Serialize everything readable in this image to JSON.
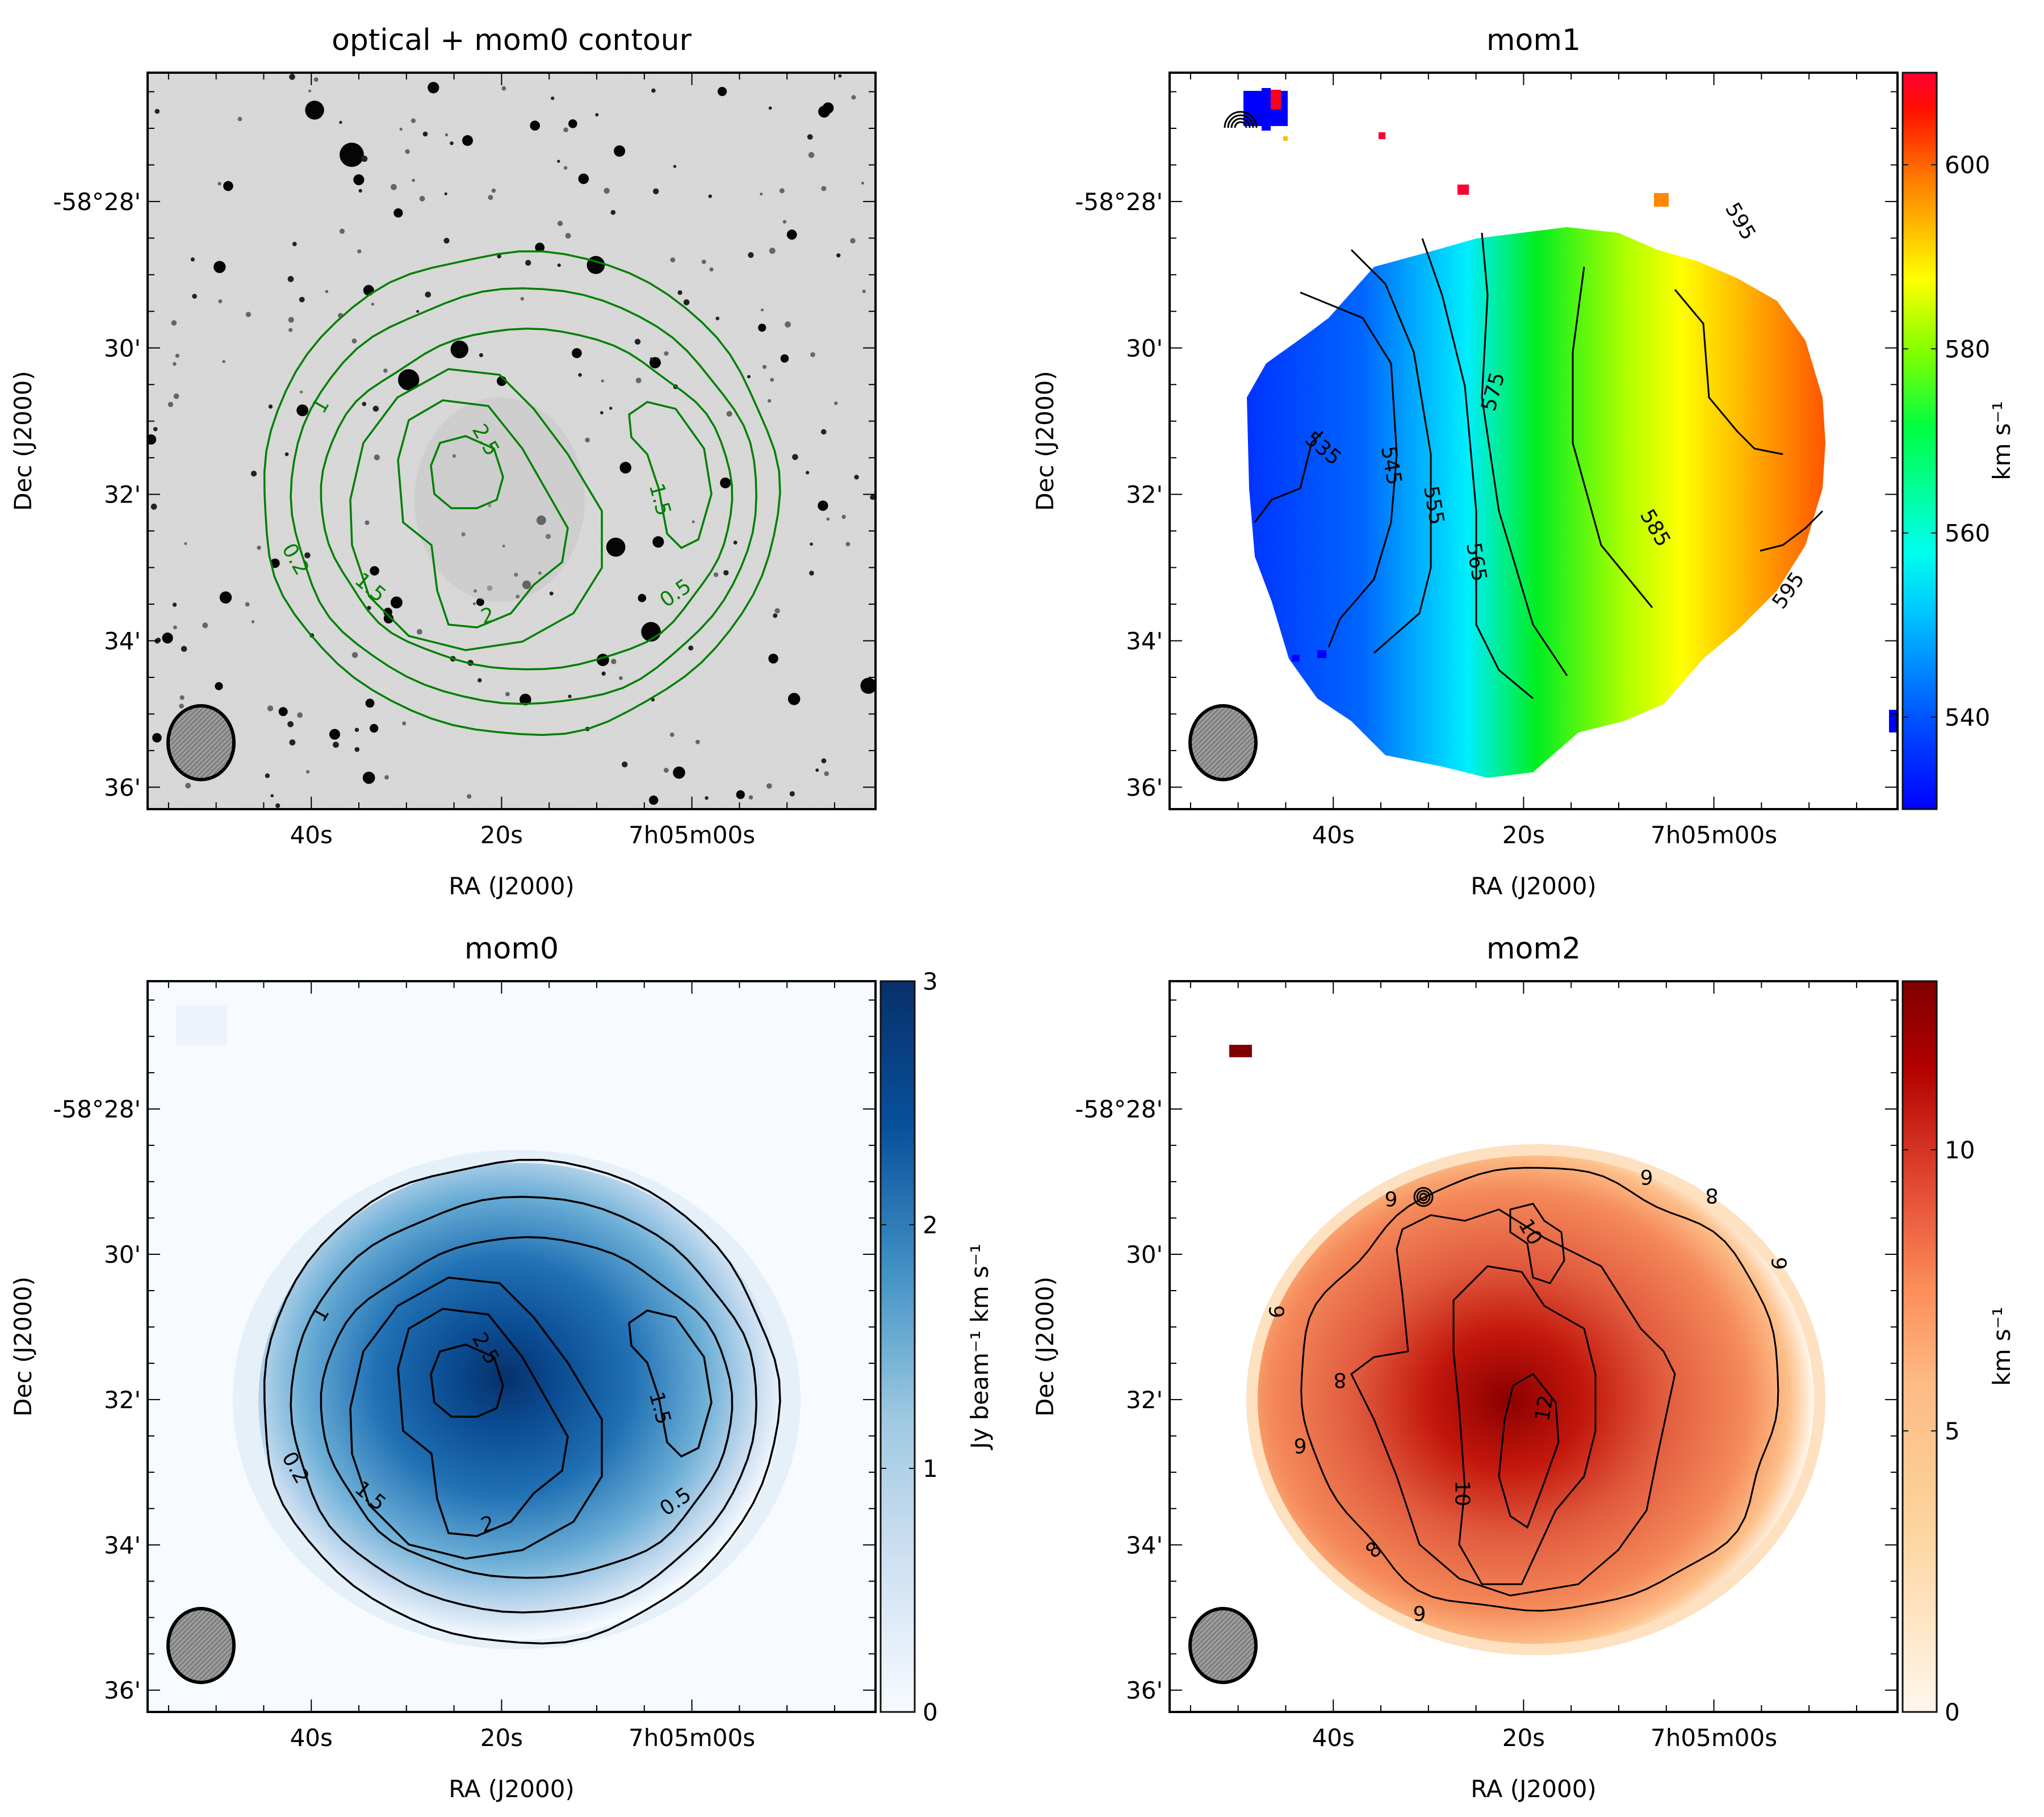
{
  "figure": {
    "panels": [
      {
        "id": "optical",
        "title": "optical + mom0 contour",
        "xlabel": "RA (J2000)",
        "ylabel": "Dec (J2000)",
        "background": "optical-greyscale",
        "contour_color": "#007f00",
        "has_colorbar": false
      },
      {
        "id": "mom1",
        "title": "mom1",
        "xlabel": "RA (J2000)",
        "ylabel": "Dec (J2000)",
        "colormap": "jet",
        "colorbar_label": "km s⁻¹",
        "contour_color": "#000000",
        "has_colorbar": true
      },
      {
        "id": "mom0",
        "title": "mom0",
        "xlabel": "RA (J2000)",
        "ylabel": "Dec (J2000)",
        "colormap": "Blues",
        "colorbar_label": "Jy beam⁻¹ km s⁻¹",
        "contour_color": "#000000",
        "has_colorbar": true
      },
      {
        "id": "mom2",
        "title": "mom2",
        "xlabel": "RA (J2000)",
        "ylabel": "Dec (J2000)",
        "colormap": "OrRd",
        "colorbar_label": "km s⁻¹",
        "contour_color": "#000000",
        "has_colorbar": true
      }
    ],
    "beam_label": "beam"
  },
  "chart_data": [
    {
      "type": "heatmap",
      "title": "optical + mom0 contour",
      "xlabel": "RA (J2000)",
      "ylabel": "Dec (J2000)",
      "x_ticks": [
        "40s",
        "20s",
        "7h05m00s"
      ],
      "y_ticks": [
        "-58°28'",
        "30'",
        "32'",
        "34'",
        "36'"
      ],
      "x_range_sec": [
        57.2,
        -19.3
      ],
      "y_range_arcmin": [
        26.24,
        36.3
      ],
      "contour_levels": [
        0.2,
        0.5,
        1,
        1.5,
        2,
        2.5
      ],
      "contour_labels": [
        "0.2",
        "0.5",
        "1",
        "1.5",
        "1.5",
        "2",
        "2.5"
      ]
    },
    {
      "type": "heatmap",
      "title": "mom1",
      "xlabel": "RA (J2000)",
      "ylabel": "Dec (J2000)",
      "x_ticks": [
        "40s",
        "20s",
        "7h05m00s"
      ],
      "y_ticks": [
        "-58°28'",
        "30'",
        "32'",
        "34'",
        "36'"
      ],
      "colorbar": {
        "label": "km s⁻¹",
        "range": [
          530,
          610
        ],
        "ticks": [
          540,
          560,
          580,
          600
        ]
      },
      "contour_levels": [
        535,
        545,
        555,
        565,
        575,
        585,
        595
      ],
      "contour_labels": [
        "535",
        "545",
        "555",
        "565",
        "575",
        "585",
        "595",
        "595"
      ]
    },
    {
      "type": "heatmap",
      "title": "mom0",
      "xlabel": "RA (J2000)",
      "ylabel": "Dec (J2000)",
      "x_ticks": [
        "40s",
        "20s",
        "7h05m00s"
      ],
      "y_ticks": [
        "-58°28'",
        "30'",
        "32'",
        "34'",
        "36'"
      ],
      "colorbar": {
        "label": "Jy beam⁻¹ km s⁻¹",
        "range": [
          0,
          3
        ],
        "ticks": [
          0,
          1,
          2,
          3
        ]
      },
      "contour_levels": [
        0.2,
        0.5,
        1,
        1.5,
        2,
        2.5
      ],
      "contour_labels": [
        "0.2",
        "0.5",
        "1",
        "1.5",
        "1.5",
        "2",
        "2.5"
      ]
    },
    {
      "type": "heatmap",
      "title": "mom2",
      "xlabel": "RA (J2000)",
      "ylabel": "Dec (J2000)",
      "x_ticks": [
        "40s",
        "20s",
        "7h05m00s"
      ],
      "y_ticks": [
        "-58°28'",
        "30'",
        "32'",
        "34'",
        "36'"
      ],
      "colorbar": {
        "label": "km s⁻¹",
        "range": [
          0,
          13
        ],
        "ticks": [
          0,
          5,
          10
        ]
      },
      "contour_levels": [
        6,
        8,
        10,
        12
      ],
      "contour_labels": [
        "6",
        "6",
        "6",
        "6",
        "6",
        "6",
        "8",
        "8",
        "8",
        "10",
        "10",
        "12"
      ]
    }
  ]
}
